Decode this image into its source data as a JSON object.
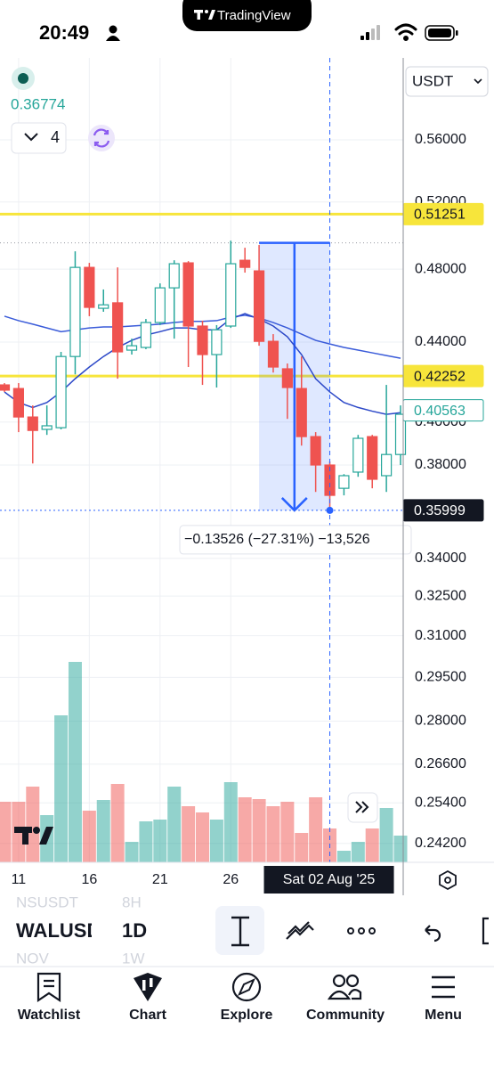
{
  "status_bar": {
    "time": "20:49"
  },
  "app_badge": {
    "name": "TradingView"
  },
  "legend": {
    "price": "0.36774",
    "indicator_count": "4"
  },
  "currency": "USDT",
  "price_axis": {
    "log": true,
    "ylim": [
      0.2366,
      0.6175
    ],
    "ticks": [
      {
        "value": 0.56,
        "label": "0.56000"
      },
      {
        "value": 0.52,
        "label": "0.52000"
      },
      {
        "value": 0.48,
        "label": "0.48000"
      },
      {
        "value": 0.44,
        "label": "0.44000"
      },
      {
        "value": 0.4,
        "label": "0.40000"
      },
      {
        "value": 0.38,
        "label": "0.38000"
      },
      {
        "value": 0.34,
        "label": "0.34000"
      },
      {
        "value": 0.325,
        "label": "0.32500"
      },
      {
        "value": 0.31,
        "label": "0.31000"
      },
      {
        "value": 0.295,
        "label": "0.29500"
      },
      {
        "value": 0.28,
        "label": "0.28000"
      },
      {
        "value": 0.266,
        "label": "0.26600"
      },
      {
        "value": 0.254,
        "label": "0.25400"
      },
      {
        "value": 0.242,
        "label": "0.24200"
      }
    ],
    "grid": true
  },
  "horizontal_lines": [
    {
      "value": 0.51251,
      "color": "#f7e53b"
    },
    {
      "value": 0.42252,
      "color": "#f7e53b"
    }
  ],
  "price_badges": [
    {
      "value": 0.51251,
      "style": "yellow"
    },
    {
      "value": 0.42252,
      "style": "yellow"
    },
    {
      "value": 0.40563,
      "style": "outline"
    },
    {
      "value": 0.35999,
      "style": "dark"
    }
  ],
  "x_axis": {
    "xlim": [
      "2025-07-10",
      "2025-08-07"
    ],
    "ticks": [
      {
        "value": "2025-07-11",
        "label": "11"
      },
      {
        "value": "2025-07-16",
        "label": "16"
      },
      {
        "value": "2025-07-21",
        "label": "21"
      },
      {
        "value": "2025-07-26",
        "label": "26"
      }
    ]
  },
  "crosshair": {
    "date": "2025-08-02",
    "price": 0.35999,
    "label": "Sat 02 Aug '25"
  },
  "measure": {
    "start_date": "2025-07-28",
    "end_date": "2025-08-02",
    "start_price": 0.49525,
    "end_price": 0.35999,
    "label": "−0.13526 (−27.31%) −13,526"
  },
  "up_color": "#26a69a",
  "down_color": "#ef5350",
  "candles": [
    {
      "date": "2025-07-10",
      "o": 0.4181,
      "h": 0.419,
      "l": 0.4146,
      "c": 0.4155
    },
    {
      "date": "2025-07-11",
      "o": 0.4163,
      "h": 0.419,
      "l": 0.3952,
      "c": 0.4024
    },
    {
      "date": "2025-07-12",
      "o": 0.4024,
      "h": 0.408,
      "l": 0.3807,
      "c": 0.396
    },
    {
      "date": "2025-07-13",
      "o": 0.3965,
      "h": 0.408,
      "l": 0.3939,
      "c": 0.3982
    },
    {
      "date": "2025-07-14",
      "o": 0.3973,
      "h": 0.4349,
      "l": 0.3965,
      "c": 0.4325
    },
    {
      "date": "2025-07-15",
      "o": 0.4325,
      "h": 0.4903,
      "l": 0.4234,
      "c": 0.481
    },
    {
      "date": "2025-07-16",
      "o": 0.481,
      "h": 0.4836,
      "l": 0.4538,
      "c": 0.4586
    },
    {
      "date": "2025-07-17",
      "o": 0.4581,
      "h": 0.4685,
      "l": 0.4562,
      "c": 0.46
    },
    {
      "date": "2025-07-18",
      "o": 0.4611,
      "h": 0.481,
      "l": 0.4212,
      "c": 0.4349
    },
    {
      "date": "2025-07-19",
      "o": 0.4358,
      "h": 0.4418,
      "l": 0.4335,
      "c": 0.4381
    },
    {
      "date": "2025-07-20",
      "o": 0.4372,
      "h": 0.4523,
      "l": 0.4363,
      "c": 0.4504
    },
    {
      "date": "2025-07-21",
      "o": 0.4504,
      "h": 0.4719,
      "l": 0.449,
      "c": 0.4694
    },
    {
      "date": "2025-07-22",
      "o": 0.4694,
      "h": 0.4851,
      "l": 0.4418,
      "c": 0.4831
    },
    {
      "date": "2025-07-23",
      "o": 0.4836,
      "h": 0.4846,
      "l": 0.4271,
      "c": 0.4485
    },
    {
      "date": "2025-07-24",
      "o": 0.4485,
      "h": 0.4514,
      "l": 0.4181,
      "c": 0.4335
    },
    {
      "date": "2025-07-25",
      "o": 0.4335,
      "h": 0.449,
      "l": 0.4168,
      "c": 0.4465
    },
    {
      "date": "2025-07-26",
      "o": 0.4485,
      "h": 0.4966,
      "l": 0.4475,
      "c": 0.4831
    },
    {
      "date": "2025-07-27",
      "o": 0.4851,
      "h": 0.4924,
      "l": 0.478,
      "c": 0.481
    },
    {
      "date": "2025-07-28",
      "o": 0.479,
      "h": 0.494,
      "l": 0.4381,
      "c": 0.4404
    },
    {
      "date": "2025-07-29",
      "o": 0.4404,
      "h": 0.4442,
      "l": 0.4243,
      "c": 0.4271
    },
    {
      "date": "2025-07-30",
      "o": 0.4262,
      "h": 0.4289,
      "l": 0.4015,
      "c": 0.4168
    },
    {
      "date": "2025-07-31",
      "o": 0.4163,
      "h": 0.4325,
      "l": 0.3889,
      "c": 0.3931
    },
    {
      "date": "2025-08-01",
      "o": 0.3931,
      "h": 0.3952,
      "l": 0.368,
      "c": 0.38
    },
    {
      "date": "2025-08-02",
      "o": 0.38,
      "h": 0.3816,
      "l": 0.3591,
      "c": 0.3665
    },
    {
      "date": "2025-08-03",
      "o": 0.3696,
      "h": 0.3759,
      "l": 0.3665,
      "c": 0.3752
    },
    {
      "date": "2025-08-04",
      "o": 0.3768,
      "h": 0.3939,
      "l": 0.3747,
      "c": 0.3923
    },
    {
      "date": "2025-08-05",
      "o": 0.3931,
      "h": 0.3939,
      "l": 0.3696,
      "c": 0.3736
    },
    {
      "date": "2025-08-06",
      "o": 0.3752,
      "h": 0.4181,
      "l": 0.368,
      "c": 0.3848
    },
    {
      "date": "2025-08-07",
      "o": 0.3848,
      "h": 0.408,
      "l": 0.38,
      "c": 0.4037
    }
  ],
  "volumes": [
    68,
    68,
    85,
    53,
    165,
    225,
    58,
    70,
    88,
    23,
    46,
    48,
    85,
    63,
    56,
    48,
    90,
    73,
    71,
    63,
    68,
    33,
    73,
    38,
    13,
    23,
    38,
    61,
    30
  ],
  "moving_averages": [
    {
      "color": "#3a5bd9",
      "values": [
        0.4538,
        0.4514,
        0.4495,
        0.4475,
        0.4455,
        0.4465,
        0.4475,
        0.448,
        0.448,
        0.4485,
        0.449,
        0.4495,
        0.4504,
        0.451,
        0.451,
        0.4514,
        0.4533,
        0.4543,
        0.4528,
        0.4504,
        0.4475,
        0.4442,
        0.4409,
        0.439,
        0.4372,
        0.4358,
        0.4344,
        0.433,
        0.4316
      ]
    },
    {
      "color": "#2c48c8",
      "values": [
        0.4146,
        0.4094,
        0.407,
        0.4094,
        0.4146,
        0.4212,
        0.4271,
        0.4325,
        0.4372,
        0.4409,
        0.4437,
        0.4455,
        0.4475,
        0.4475,
        0.4465,
        0.4465,
        0.4523,
        0.4552,
        0.4523,
        0.4485,
        0.4428,
        0.4335,
        0.4212,
        0.4146,
        0.4094,
        0.407,
        0.4052,
        0.4037,
        0.4045
      ]
    }
  ],
  "toolbar": {
    "symbol": "WALUSD",
    "interval": "1D",
    "prev_symbol": "NSUSDT",
    "prev_interval": "8H",
    "next_symbol": "NOV",
    "next_interval": "1W"
  },
  "nav": [
    "Watchlist",
    "Chart",
    "Explore",
    "Community",
    "Menu"
  ]
}
